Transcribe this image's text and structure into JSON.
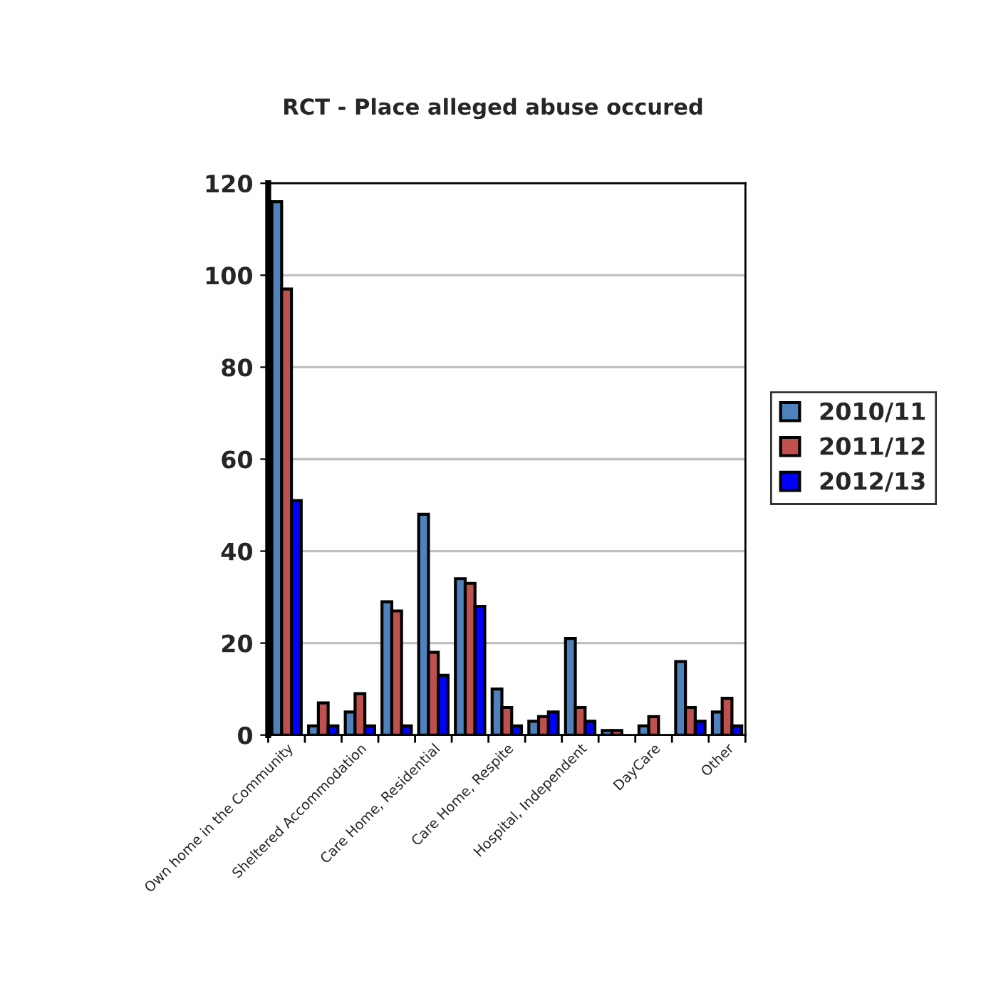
{
  "chart_data": {
    "type": "bar",
    "title": "RCT - Place alleged abuse occured",
    "categories": [
      "Own home in the Community",
      null,
      "Sheltered Accommodation",
      null,
      "Care Home, Residential",
      null,
      "Care Home, Respite",
      null,
      "Hospital, Independent",
      null,
      "DayCare",
      null,
      "Other"
    ],
    "series": [
      {
        "name": "2010/11",
        "color": "#4f81bd",
        "values": [
          116,
          2,
          5,
          29,
          48,
          34,
          10,
          3,
          21,
          1,
          2,
          16,
          5
        ]
      },
      {
        "name": "2011/12",
        "color": "#c0504d",
        "values": [
          97,
          7,
          9,
          27,
          18,
          33,
          6,
          4,
          6,
          1,
          4,
          6,
          8
        ]
      },
      {
        "name": "2012/13",
        "color": "#0000ff",
        "values": [
          51,
          2,
          2,
          2,
          13,
          28,
          2,
          5,
          3,
          null,
          null,
          3,
          2
        ]
      }
    ],
    "ylim": [
      0,
      120
    ],
    "yticks": [
      0,
      20,
      40,
      60,
      80,
      100,
      120
    ],
    "grid": "y",
    "legend": "right"
  }
}
